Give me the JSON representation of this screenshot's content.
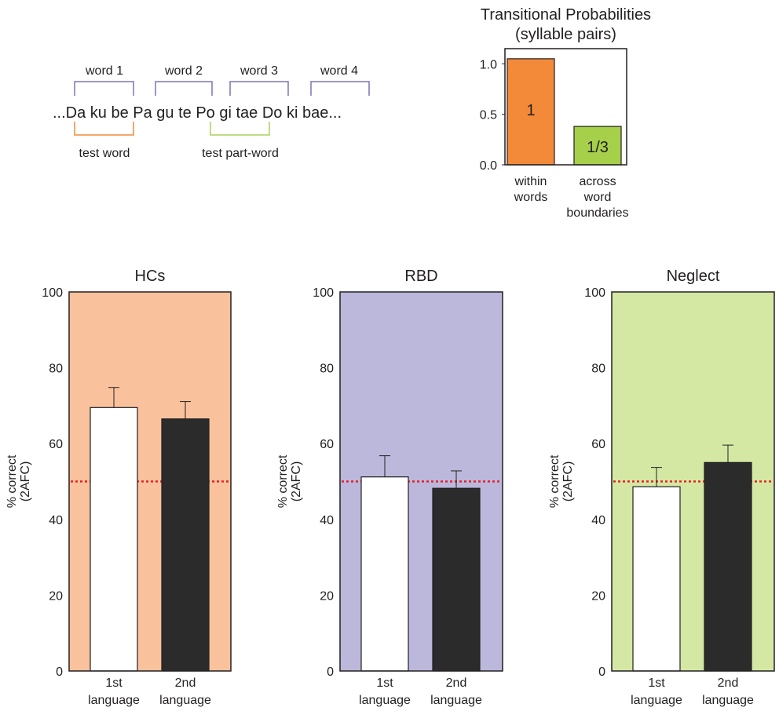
{
  "diagram": {
    "sentence": "...Da ku be Pa gu te Po gi tae Do ki bae...",
    "word_labels": [
      "word 1",
      "word 2",
      "word 3",
      "word 4"
    ],
    "test_word_label": "test word",
    "test_partword_label": "test part-word",
    "colors": {
      "word_bracket": "#7b74b8",
      "test_word": "#f28a3a",
      "test_partword": "#a8d25a"
    }
  },
  "chart_data": [
    {
      "type": "bar",
      "title": "Transitional Probabilities",
      "subtitle": "(syllable pairs)",
      "categories": [
        "within words",
        "across word boundaries"
      ],
      "category_lines": [
        [
          "within",
          "words"
        ],
        [
          "across",
          "word",
          "boundaries"
        ]
      ],
      "values": [
        1.05,
        0.38
      ],
      "data_labels": [
        "1",
        "1/3"
      ],
      "ylim": [
        0,
        1.15
      ],
      "yticks": [
        "0.0",
        "0.5",
        "1.0"
      ],
      "ytick_values": [
        0,
        0.5,
        1.0
      ],
      "bar_colors": [
        "#f28a3a",
        "#a6d04a"
      ],
      "grid": false
    },
    {
      "type": "bar",
      "title": "HCs",
      "ylabel": "% correct",
      "ylabel2": "(2AFC)",
      "categories": [
        "1st language",
        "2nd language"
      ],
      "category_lines": [
        [
          "1st",
          "language"
        ],
        [
          "2nd",
          "language"
        ]
      ],
      "values": [
        69.5,
        66.5
      ],
      "errors": [
        5.3,
        4.6
      ],
      "ylim": [
        0,
        100
      ],
      "yticks": [
        "0",
        "20",
        "40",
        "60",
        "80",
        "100"
      ],
      "ytick_values": [
        0,
        20,
        40,
        60,
        80,
        100
      ],
      "chance_level": 50,
      "background": "#f9c29c",
      "bar_colors": [
        "#ffffff",
        "#2b2b2b"
      ]
    },
    {
      "type": "bar",
      "title": "RBD",
      "ylabel": "% correct",
      "ylabel2": "(2AFC)",
      "categories": [
        "1st language",
        "2nd language"
      ],
      "category_lines": [
        [
          "1st",
          "language"
        ],
        [
          "2nd",
          "language"
        ]
      ],
      "values": [
        51.2,
        48.2
      ],
      "errors": [
        5.6,
        4.6
      ],
      "ylim": [
        0,
        100
      ],
      "yticks": [
        "0",
        "20",
        "40",
        "60",
        "80",
        "100"
      ],
      "ytick_values": [
        0,
        20,
        40,
        60,
        80,
        100
      ],
      "chance_level": 50,
      "background": "#bbb8dc",
      "bar_colors": [
        "#ffffff",
        "#2b2b2b"
      ]
    },
    {
      "type": "bar",
      "title": "Neglect",
      "ylabel": "% correct",
      "ylabel2": "(2AFC)",
      "categories": [
        "1st language",
        "2nd language"
      ],
      "category_lines": [
        [
          "1st",
          "language"
        ],
        [
          "2nd",
          "language"
        ]
      ],
      "values": [
        48.6,
        55.0
      ],
      "errors": [
        5.1,
        4.6
      ],
      "ylim": [
        0,
        100
      ],
      "yticks": [
        "0",
        "20",
        "40",
        "60",
        "80",
        "100"
      ],
      "ytick_values": [
        0,
        20,
        40,
        60,
        80,
        100
      ],
      "chance_level": 50,
      "background": "#d4e8a4",
      "bar_colors": [
        "#ffffff",
        "#2b2b2b"
      ]
    }
  ],
  "colors": {
    "axis": "#231f20",
    "chance_line": "#e8202a",
    "error_bar": "#231f20"
  }
}
